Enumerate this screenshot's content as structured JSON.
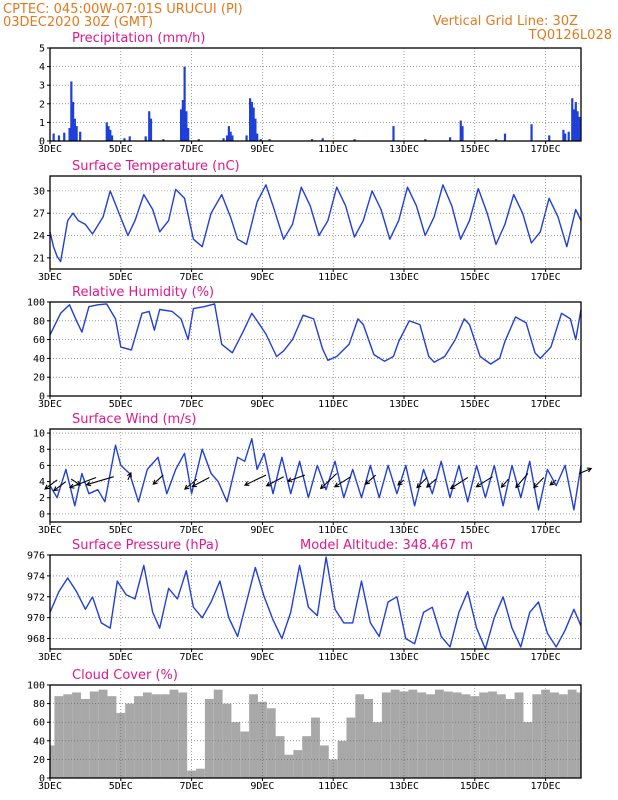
{
  "header": {
    "line1": "CPTEC:   045:00W-07:01S   URUCUI (PI)",
    "line2": "03DEC2020 30Z (GMT)",
    "grid_note": "Vertical Grid Line: 30Z",
    "code": "TQ0126L028"
  },
  "colors": {
    "line": "#1f3fdb",
    "cloud": "#a8a8a8",
    "header": "#e07a1f",
    "title": "#e0188c"
  },
  "x_ticks": [
    "3DEC",
    "5DEC",
    "7DEC",
    "9DEC",
    "11DEC",
    "13DEC",
    "15DEC",
    "17DEC"
  ],
  "x_range_days": [
    3,
    18
  ],
  "chart_data": [
    {
      "type": "bar",
      "title": "Precipitation (mm/h)",
      "ylim": [
        0,
        5
      ],
      "yticks": [
        0,
        1,
        2,
        3,
        4,
        5
      ],
      "points": [
        {
          "x": 3.1,
          "y": 0.4
        },
        {
          "x": 3.25,
          "y": 0.3
        },
        {
          "x": 3.4,
          "y": 0.45
        },
        {
          "x": 3.55,
          "y": 0.7
        },
        {
          "x": 3.6,
          "y": 3.2
        },
        {
          "x": 3.65,
          "y": 2.1
        },
        {
          "x": 3.7,
          "y": 1.2
        },
        {
          "x": 3.75,
          "y": 0.8
        },
        {
          "x": 3.85,
          "y": 0.5
        },
        {
          "x": 4.6,
          "y": 1.0
        },
        {
          "x": 4.65,
          "y": 0.8
        },
        {
          "x": 4.7,
          "y": 0.6
        },
        {
          "x": 4.75,
          "y": 0.3
        },
        {
          "x": 5.1,
          "y": 0.15
        },
        {
          "x": 5.25,
          "y": 0.25
        },
        {
          "x": 5.7,
          "y": 0.25
        },
        {
          "x": 5.8,
          "y": 1.6
        },
        {
          "x": 5.85,
          "y": 1.2
        },
        {
          "x": 6.2,
          "y": 0.1
        },
        {
          "x": 6.7,
          "y": 1.7
        },
        {
          "x": 6.75,
          "y": 2.2
        },
        {
          "x": 6.8,
          "y": 4.0
        },
        {
          "x": 6.85,
          "y": 1.6
        },
        {
          "x": 6.9,
          "y": 0.7
        },
        {
          "x": 7.2,
          "y": 0.1
        },
        {
          "x": 7.9,
          "y": 0.15
        },
        {
          "x": 8.0,
          "y": 0.3
        },
        {
          "x": 8.05,
          "y": 0.8
        },
        {
          "x": 8.1,
          "y": 0.5
        },
        {
          "x": 8.15,
          "y": 0.3
        },
        {
          "x": 8.55,
          "y": 0.3
        },
        {
          "x": 8.65,
          "y": 2.3
        },
        {
          "x": 8.7,
          "y": 2.1
        },
        {
          "x": 8.75,
          "y": 1.8
        },
        {
          "x": 8.8,
          "y": 1.2
        },
        {
          "x": 8.85,
          "y": 0.4
        },
        {
          "x": 8.95,
          "y": 0.1
        },
        {
          "x": 9.2,
          "y": 0.1
        },
        {
          "x": 10.4,
          "y": 0.1
        },
        {
          "x": 10.7,
          "y": 0.15
        },
        {
          "x": 11.6,
          "y": 0.1
        },
        {
          "x": 12.7,
          "y": 0.8
        },
        {
          "x": 13.6,
          "y": 0.1
        },
        {
          "x": 14.3,
          "y": 0.2
        },
        {
          "x": 14.6,
          "y": 1.1
        },
        {
          "x": 14.65,
          "y": 0.8
        },
        {
          "x": 15.6,
          "y": 0.1
        },
        {
          "x": 15.85,
          "y": 0.4
        },
        {
          "x": 16.6,
          "y": 0.9
        },
        {
          "x": 17.1,
          "y": 0.3
        },
        {
          "x": 17.5,
          "y": 0.6
        },
        {
          "x": 17.55,
          "y": 0.4
        },
        {
          "x": 17.65,
          "y": 0.5
        },
        {
          "x": 17.75,
          "y": 2.3
        },
        {
          "x": 17.8,
          "y": 1.7
        },
        {
          "x": 17.85,
          "y": 2.1
        },
        {
          "x": 17.9,
          "y": 1.6
        },
        {
          "x": 17.95,
          "y": 1.3
        }
      ]
    },
    {
      "type": "line",
      "title": "Surface Temperature (nC)",
      "ylim": [
        19.5,
        32
      ],
      "yticks": [
        21,
        24,
        27,
        30
      ],
      "x": [
        3.0,
        3.1,
        3.2,
        3.3,
        3.5,
        3.65,
        3.8,
        4.0,
        4.2,
        4.5,
        4.7,
        4.95,
        5.2,
        5.4,
        5.65,
        5.9,
        6.1,
        6.35,
        6.55,
        6.8,
        7.05,
        7.3,
        7.55,
        7.85,
        8.1,
        8.3,
        8.55,
        8.85,
        9.1,
        9.3,
        9.6,
        9.85,
        10.1,
        10.35,
        10.6,
        10.85,
        11.1,
        11.35,
        11.6,
        11.85,
        12.1,
        12.35,
        12.6,
        12.85,
        13.1,
        13.35,
        13.6,
        13.85,
        14.1,
        14.35,
        14.6,
        14.85,
        15.1,
        15.35,
        15.6,
        15.85,
        16.1,
        16.35,
        16.6,
        16.85,
        17.1,
        17.35,
        17.6,
        17.85,
        18.0
      ],
      "y": [
        24.5,
        22.5,
        21.2,
        20.5,
        26.0,
        27.0,
        26.0,
        25.5,
        24.2,
        26.5,
        30.0,
        27.0,
        24.0,
        26.0,
        29.5,
        27.5,
        24.5,
        26.0,
        30.2,
        29.0,
        23.5,
        22.5,
        27.0,
        29.5,
        26.5,
        23.5,
        22.8,
        28.5,
        30.8,
        28.0,
        23.5,
        25.5,
        30.5,
        28.0,
        24.0,
        26.0,
        30.5,
        28.0,
        23.8,
        26.0,
        30.0,
        27.5,
        23.5,
        26.0,
        30.5,
        28.0,
        24.0,
        26.5,
        30.8,
        28.0,
        23.5,
        26.0,
        30.3,
        27.0,
        22.8,
        25.5,
        29.5,
        27.0,
        23.0,
        24.5,
        29.0,
        26.5,
        22.5,
        27.5,
        26.0
      ]
    },
    {
      "type": "line",
      "title": "Relative Humidity (%)",
      "ylim": [
        0,
        100
      ],
      "yticks": [
        0,
        20,
        40,
        60,
        80,
        100
      ],
      "x": [
        3.0,
        3.3,
        3.55,
        3.75,
        3.9,
        4.1,
        4.35,
        4.6,
        4.85,
        5.0,
        5.3,
        5.6,
        5.8,
        5.95,
        6.1,
        6.45,
        6.7,
        6.9,
        7.05,
        7.35,
        7.65,
        7.85,
        8.15,
        8.45,
        8.7,
        8.85,
        9.1,
        9.4,
        9.6,
        9.85,
        10.15,
        10.45,
        10.7,
        10.85,
        11.1,
        11.45,
        11.7,
        11.85,
        12.15,
        12.45,
        12.7,
        12.85,
        13.15,
        13.45,
        13.7,
        13.85,
        14.15,
        14.45,
        14.7,
        14.85,
        15.15,
        15.45,
        15.7,
        15.85,
        16.15,
        16.45,
        16.7,
        16.85,
        17.15,
        17.45,
        17.7,
        17.85,
        18.0
      ],
      "y": [
        65,
        88,
        97,
        80,
        68,
        95,
        97,
        98,
        82,
        52,
        49,
        88,
        90,
        70,
        92,
        90,
        82,
        60,
        93,
        95,
        98,
        55,
        46,
        68,
        88,
        80,
        66,
        42,
        48,
        60,
        86,
        82,
        50,
        38,
        42,
        55,
        82,
        76,
        44,
        37,
        42,
        58,
        80,
        76,
        42,
        36,
        42,
        60,
        82,
        76,
        42,
        34,
        40,
        58,
        84,
        78,
        46,
        40,
        52,
        88,
        82,
        60,
        92
      ]
    },
    {
      "type": "line",
      "title": "Surface Wind (m/s)",
      "ylim": [
        -1,
        10.5
      ],
      "yticks": [
        0,
        2,
        4,
        6,
        8,
        10
      ],
      "x": [
        3.0,
        3.2,
        3.45,
        3.7,
        3.9,
        4.1,
        4.35,
        4.55,
        4.85,
        5.0,
        5.25,
        5.5,
        5.75,
        6.05,
        6.3,
        6.55,
        6.8,
        7.0,
        7.3,
        7.55,
        7.75,
        8.0,
        8.3,
        8.5,
        8.7,
        8.85,
        9.05,
        9.3,
        9.55,
        9.8,
        10.05,
        10.3,
        10.55,
        10.8,
        11.05,
        11.3,
        11.55,
        11.8,
        12.05,
        12.3,
        12.55,
        12.8,
        13.05,
        13.3,
        13.55,
        13.8,
        14.05,
        14.3,
        14.55,
        14.8,
        15.05,
        15.3,
        15.55,
        15.8,
        16.05,
        16.3,
        16.55,
        16.8,
        17.05,
        17.3,
        17.55,
        17.8,
        18.0
      ],
      "y": [
        3.5,
        2.0,
        5.5,
        1.0,
        5.0,
        2.5,
        3.0,
        1.5,
        8.5,
        6.0,
        5.0,
        1.5,
        5.5,
        7.0,
        2.5,
        5.5,
        7.5,
        2.5,
        8.0,
        5.0,
        4.0,
        1.5,
        7.0,
        6.5,
        9.3,
        5.5,
        7.5,
        2.5,
        7.0,
        2.5,
        6.5,
        2.0,
        6.0,
        3.0,
        6.5,
        2.0,
        5.5,
        2.0,
        6.0,
        2.0,
        6.0,
        2.5,
        6.0,
        1.0,
        5.5,
        2.5,
        6.5,
        2.0,
        6.0,
        1.5,
        6.0,
        2.0,
        6.0,
        1.0,
        6.0,
        2.0,
        6.5,
        0.5,
        5.5,
        3.5,
        6.0,
        0.5,
        6.0
      ],
      "arrows": [
        {
          "x": 3.2,
          "y": 4.2,
          "dx": -12,
          "dy": 9
        },
        {
          "x": 3.45,
          "y": 4.0,
          "dx": -12,
          "dy": 9
        },
        {
          "x": 3.6,
          "y": 4.3,
          "dx": 9,
          "dy": 6
        },
        {
          "x": 4.3,
          "y": 4.5,
          "dx": -26,
          "dy": 10
        },
        {
          "x": 4.8,
          "y": 4.6,
          "dx": -27,
          "dy": 8
        },
        {
          "x": 5.2,
          "y": 4.2,
          "dx": 3,
          "dy": -7
        },
        {
          "x": 6.2,
          "y": 4.8,
          "dx": -10,
          "dy": 9
        },
        {
          "x": 7.15,
          "y": 4.3,
          "dx": -12,
          "dy": 10
        },
        {
          "x": 7.5,
          "y": 4.5,
          "dx": -17,
          "dy": 9
        },
        {
          "x": 9.1,
          "y": 4.8,
          "dx": -21,
          "dy": 10
        },
        {
          "x": 9.6,
          "y": 4.6,
          "dx": -17,
          "dy": 9
        },
        {
          "x": 10.2,
          "y": 4.8,
          "dx": -17,
          "dy": 6
        },
        {
          "x": 11.1,
          "y": 5.0,
          "dx": -16,
          "dy": 15
        },
        {
          "x": 11.5,
          "y": 4.6,
          "dx": -16,
          "dy": 10
        },
        {
          "x": 12.2,
          "y": 4.8,
          "dx": -10,
          "dy": 9
        },
        {
          "x": 13.0,
          "y": 4.2,
          "dx": -6,
          "dy": 5
        },
        {
          "x": 13.65,
          "y": 4.5,
          "dx": -10,
          "dy": 10
        },
        {
          "x": 13.9,
          "y": 4.3,
          "dx": -9,
          "dy": 8
        },
        {
          "x": 14.8,
          "y": 4.5,
          "dx": -17,
          "dy": 11
        },
        {
          "x": 15.5,
          "y": 4.6,
          "dx": -16,
          "dy": 10
        },
        {
          "x": 15.95,
          "y": 4.3,
          "dx": -7,
          "dy": 8
        },
        {
          "x": 16.5,
          "y": 5.0,
          "dx": -12,
          "dy": 14
        },
        {
          "x": 16.95,
          "y": 4.5,
          "dx": -10,
          "dy": 10
        },
        {
          "x": 17.3,
          "y": 4.2,
          "dx": -6,
          "dy": 5
        },
        {
          "x": 17.95,
          "y": 5.0,
          "dx": 12,
          "dy": -5
        }
      ]
    },
    {
      "type": "line",
      "title": "Surface Pressure (hPa)",
      "annotation": "Model Altitude: 348.467 m",
      "ylim": [
        967,
        976
      ],
      "yticks": [
        968,
        970,
        972,
        974,
        976
      ],
      "x": [
        3.0,
        3.25,
        3.5,
        3.75,
        4.0,
        4.2,
        4.45,
        4.7,
        4.9,
        5.15,
        5.4,
        5.65,
        5.9,
        6.1,
        6.35,
        6.6,
        6.85,
        7.05,
        7.3,
        7.55,
        7.8,
        8.05,
        8.3,
        8.55,
        8.8,
        9.05,
        9.3,
        9.55,
        9.8,
        10.05,
        10.3,
        10.55,
        10.8,
        11.05,
        11.3,
        11.55,
        11.8,
        12.05,
        12.3,
        12.55,
        12.8,
        13.05,
        13.3,
        13.55,
        13.8,
        14.05,
        14.3,
        14.55,
        14.8,
        15.05,
        15.3,
        15.55,
        15.8,
        16.05,
        16.3,
        16.55,
        16.8,
        17.05,
        17.3,
        17.55,
        17.8,
        18.0
      ],
      "y": [
        970.5,
        972.5,
        973.8,
        972.5,
        970.8,
        972.0,
        969.5,
        969.0,
        973.5,
        972.2,
        971.8,
        975.0,
        970.5,
        969.0,
        972.8,
        971.8,
        974.5,
        971.0,
        970.0,
        971.5,
        973.5,
        970.0,
        968.2,
        971.5,
        974.8,
        972.0,
        969.8,
        968.0,
        970.5,
        975.0,
        971.0,
        970.2,
        975.8,
        970.8,
        969.5,
        969.5,
        973.5,
        969.5,
        968.2,
        971.5,
        972.0,
        968.0,
        967.5,
        970.5,
        971.0,
        968.2,
        967.2,
        970.5,
        972.5,
        969.0,
        967.0,
        970.0,
        972.0,
        969.0,
        967.2,
        970.5,
        971.5,
        968.5,
        967.2,
        968.8,
        970.8,
        969.2
      ]
    },
    {
      "type": "bar",
      "title": "Cloud Cover (%)",
      "ylim": [
        0,
        100
      ],
      "yticks": [
        0,
        20,
        40,
        60,
        80,
        100
      ],
      "x": [
        3.0,
        3.25,
        3.5,
        3.75,
        4.0,
        4.25,
        4.5,
        4.75,
        5.0,
        5.25,
        5.5,
        5.75,
        6.0,
        6.25,
        6.5,
        6.75,
        7.0,
        7.25,
        7.5,
        7.75,
        8.0,
        8.25,
        8.5,
        8.75,
        9.0,
        9.25,
        9.5,
        9.75,
        10.0,
        10.25,
        10.5,
        10.75,
        11.0,
        11.25,
        11.5,
        11.75,
        12.0,
        12.25,
        12.5,
        12.75,
        13.0,
        13.25,
        13.5,
        13.75,
        14.0,
        14.25,
        14.5,
        14.75,
        15.0,
        15.25,
        15.5,
        15.75,
        16.0,
        16.25,
        16.5,
        16.75,
        17.0,
        17.25,
        17.5,
        17.75,
        18.0
      ],
      "y": [
        35,
        88,
        90,
        92,
        85,
        93,
        95,
        88,
        70,
        80,
        88,
        92,
        90,
        90,
        95,
        92,
        8,
        10,
        85,
        95,
        80,
        60,
        50,
        90,
        82,
        75,
        45,
        25,
        30,
        45,
        65,
        35,
        20,
        40,
        65,
        90,
        85,
        60,
        92,
        95,
        93,
        95,
        92,
        90,
        95,
        93,
        92,
        90,
        88,
        92,
        93,
        90,
        85,
        92,
        60,
        90,
        95,
        92,
        90,
        95,
        92
      ]
    }
  ]
}
